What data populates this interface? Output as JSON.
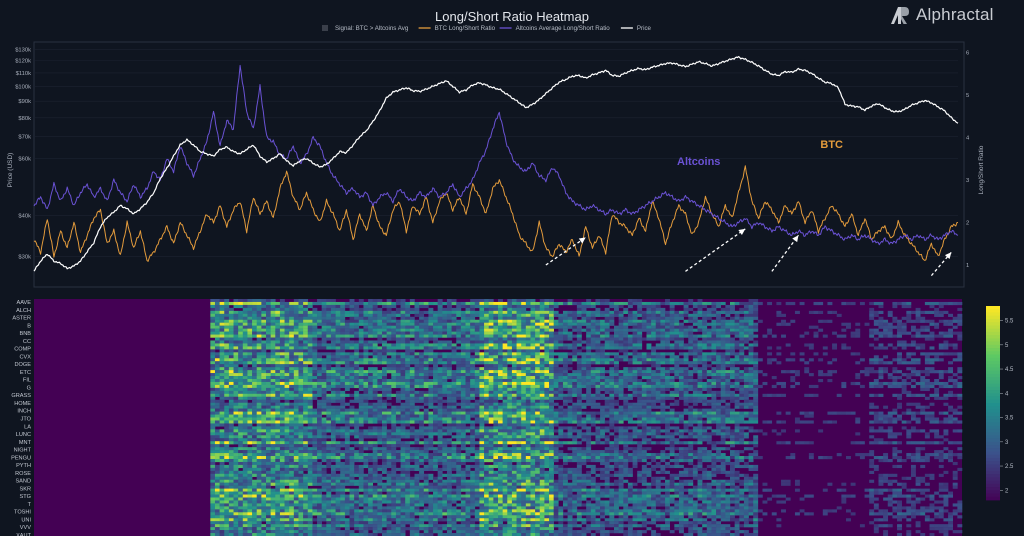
{
  "brand": {
    "name": "Alphractal"
  },
  "chart_data": {
    "title": "Long/Short Ratio Heatmap",
    "legend": [
      {
        "label": "Signal: BTC > Altcoins Avg",
        "color": "#3a3f4a",
        "kind": "square"
      },
      {
        "label": "BTC Long/Short Ratio",
        "color": "#e39b3c",
        "kind": "line"
      },
      {
        "label": "Altcoins Average Long/Short Ratio",
        "color": "#6a52d4",
        "kind": "line"
      },
      {
        "label": "Price",
        "color": "#ffffff",
        "kind": "line"
      }
    ],
    "top_panel": {
      "type": "line",
      "ylabel_left": "Price (USD)",
      "ylabel_right": "Long/Short Ratio",
      "yticks_left": [
        "$130k",
        "$120k",
        "$110k",
        "$100k",
        "$90k",
        "$80k",
        "$70k",
        "$60k",
        "$40k",
        "$30k"
      ],
      "yticks_left_values": [
        130000,
        120000,
        110000,
        100000,
        90000,
        80000,
        70000,
        60000,
        40000,
        30000
      ],
      "ylim_left": [
        25000,
        135000
      ],
      "left_scale": "log",
      "yticks_right": [
        "6",
        "5",
        "4",
        "3",
        "2",
        "1"
      ],
      "ylim_right": [
        0.6,
        6.2
      ],
      "n_points": 140,
      "series": [
        {
          "name": "Price",
          "color": "#ffffff",
          "axis": "left",
          "values": [
            27000,
            29000,
            30500,
            29000,
            28500,
            27500,
            28000,
            29000,
            31000,
            33000,
            37000,
            39500,
            41000,
            43000,
            42000,
            40500,
            42000,
            44000,
            47000,
            52000,
            56000,
            61000,
            66000,
            68500,
            66000,
            63000,
            62000,
            61000,
            64000,
            65000,
            63000,
            62000,
            64000,
            66000,
            61000,
            58500,
            60000,
            62000,
            59000,
            57000,
            59000,
            60000,
            58000,
            56500,
            57500,
            60000,
            63000,
            62500,
            66000,
            70000,
            73000,
            78000,
            84000,
            92000,
            96000,
            97500,
            99000,
            97000,
            96500,
            98000,
            100000,
            102000,
            104000,
            100000,
            96000,
            97500,
            101000,
            102500,
            101000,
            99000,
            98000,
            95000,
            92000,
            89000,
            86000,
            88000,
            91000,
            95000,
            99000,
            103000,
            105000,
            107500,
            108000,
            106000,
            108500,
            110000,
            112000,
            108000,
            107500,
            110000,
            112000,
            113500,
            112500,
            114500,
            116000,
            117500,
            118000,
            116500,
            115000,
            117000,
            119000,
            117500,
            115500,
            117500,
            119500,
            121500,
            123000,
            121000,
            118500,
            115500,
            112000,
            109000,
            108000,
            111000,
            110500,
            113000,
            112000,
            109500,
            106000,
            103000,
            102000,
            99000,
            88000,
            87000,
            86500,
            84500,
            87000,
            88500,
            86000,
            84000,
            83500,
            85000,
            87500,
            89000,
            90500,
            89000,
            86500,
            84000,
            80000,
            77000
          ]
        },
        {
          "name": "BTC Long/Short Ratio",
          "color": "#e39b3c",
          "axis": "right",
          "values": [
            1.6,
            1.3,
            2.1,
            1.2,
            1.8,
            1.4,
            2.0,
            1.3,
            1.7,
            2.1,
            2.3,
            1.5,
            1.8,
            1.2,
            2.0,
            1.4,
            1.8,
            1.1,
            1.3,
            1.6,
            1.9,
            1.5,
            2.0,
            1.7,
            1.4,
            1.8,
            2.2,
            2.0,
            2.4,
            1.9,
            2.3,
            2.5,
            1.8,
            2.6,
            2.2,
            2.5,
            2.1,
            2.8,
            3.2,
            2.6,
            2.3,
            2.7,
            2.3,
            2.0,
            2.5,
            2.2,
            1.8,
            2.3,
            1.6,
            2.2,
            1.8,
            2.4,
            1.9,
            1.7,
            2.3,
            2.5,
            1.8,
            2.4,
            2.2,
            2.6,
            2.0,
            2.5,
            2.7,
            2.3,
            2.6,
            2.2,
            2.9,
            2.6,
            2.2,
            2.8,
            3.0,
            2.6,
            2.2,
            1.7,
            1.5,
            1.3,
            2.0,
            1.4,
            1.2,
            1.5,
            1.3,
            1.6,
            1.2,
            1.9,
            1.4,
            1.7,
            1.3,
            2.2,
            2.0,
            1.9,
            1.7,
            2.1,
            1.8,
            2.5,
            2.1,
            1.5,
            2.0,
            2.4,
            2.2,
            1.7,
            2.0,
            2.6,
            2.2,
            1.9,
            2.4,
            2.1,
            2.7,
            3.3,
            2.5,
            2.1,
            2.5,
            2.3,
            2.0,
            2.4,
            2.2,
            2.5,
            2.0,
            2.3,
            1.8,
            2.1,
            2.4,
            2.2,
            1.9,
            2.2,
            1.7,
            2.1,
            1.6,
            1.8,
            1.9,
            1.6,
            2.0,
            1.7,
            1.5,
            1.3,
            1.1,
            1.5,
            1.2,
            1.6,
            1.9,
            2.0
          ]
        },
        {
          "name": "Altcoins Average Long/Short Ratio",
          "color": "#6a52d4",
          "axis": "right",
          "values": [
            2.4,
            2.6,
            2.3,
            2.9,
            2.5,
            2.8,
            2.4,
            2.7,
            2.9,
            2.6,
            2.8,
            2.5,
            3.0,
            2.7,
            2.5,
            2.9,
            2.6,
            2.8,
            3.2,
            3.0,
            3.5,
            3.2,
            3.8,
            3.4,
            3.1,
            3.5,
            3.9,
            4.6,
            3.8,
            4.4,
            4.2,
            5.7,
            4.6,
            4.2,
            5.2,
            4.0,
            3.9,
            3.6,
            3.5,
            3.8,
            3.4,
            3.6,
            4.0,
            3.8,
            3.4,
            3.1,
            2.9,
            2.7,
            2.8,
            2.6,
            2.7,
            2.4,
            2.6,
            2.7,
            2.5,
            2.8,
            2.6,
            2.5,
            2.7,
            2.6,
            2.8,
            2.6,
            2.7,
            2.9,
            2.6,
            2.8,
            3.0,
            3.4,
            3.7,
            4.2,
            4.6,
            3.9,
            3.5,
            3.3,
            3.2,
            3.4,
            3.1,
            3.0,
            3.3,
            3.1,
            2.7,
            2.5,
            2.4,
            2.3,
            2.4,
            2.3,
            2.2,
            2.3,
            2.2,
            2.3,
            2.2,
            2.3,
            2.4,
            2.5,
            2.6,
            2.7,
            2.6,
            2.5,
            2.6,
            2.5,
            2.4,
            2.3,
            2.2,
            2.1,
            2.0,
            1.9,
            2.0,
            2.1,
            1.9,
            2.0,
            1.9,
            1.8,
            1.9,
            1.8,
            1.7,
            1.8,
            1.7,
            1.8,
            1.7,
            1.9,
            1.8,
            1.7,
            1.6,
            1.7,
            1.6,
            1.7,
            1.6,
            1.5,
            1.6,
            1.5,
            1.6,
            1.7,
            1.6,
            1.7,
            1.6,
            1.7,
            1.6,
            1.7,
            1.8,
            1.7
          ]
        }
      ],
      "annotations": [
        {
          "text": "Altcoins",
          "color": "#6a52d4",
          "x_index": 100,
          "value": 3.35
        },
        {
          "text": "BTC",
          "color": "#e39b3c",
          "x_index": 120,
          "value": 3.75
        }
      ],
      "arrows": [
        {
          "from_index": 77,
          "from_value": 1.0,
          "to_index": 83,
          "to_value": 1.65
        },
        {
          "from_index": 98,
          "from_value": 0.85,
          "to_index": 107,
          "to_value": 1.85
        },
        {
          "from_index": 111,
          "from_value": 0.85,
          "to_index": 115,
          "to_value": 1.7
        },
        {
          "from_index": 135,
          "from_value": 0.75,
          "to_index": 138,
          "to_value": 1.3
        }
      ]
    },
    "bottom_panel": {
      "type": "heatmap",
      "row_labels": [
        "AAVE",
        "ALCH",
        "ASTER",
        "B",
        "BNB",
        "CC",
        "COMP",
        "CVX",
        "DOGE",
        "ETC",
        "FIL",
        "G",
        "GRASS",
        "HOME",
        "INCH",
        "JTO",
        "LA",
        "LUNC",
        "MNT",
        "NIGHT",
        "PENGU",
        "PYTH",
        "ROSE",
        "SAND",
        "SKR",
        "STG",
        "T",
        "TOSHI",
        "UNI",
        "VVV",
        "XAUT"
      ],
      "colorbar": {
        "ticks": [
          "5.5",
          "5",
          "4.5",
          "4",
          "3.5",
          "3",
          "2.5",
          "2"
        ],
        "tick_values": [
          5.5,
          5,
          4.5,
          4,
          3.5,
          3,
          2.5,
          2
        ],
        "range": [
          1.8,
          5.8
        ]
      },
      "colormap": [
        "#440154",
        "#3b528b",
        "#21908d",
        "#5dc963",
        "#fde725"
      ]
    }
  }
}
